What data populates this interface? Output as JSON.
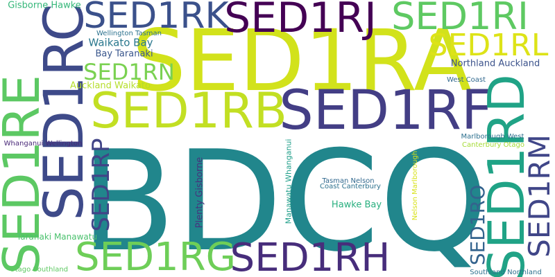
{
  "words": [
    {
      "text": "BDCQ",
      "color": "#21868c"
    },
    {
      "text": "SED1RA",
      "color": "#d2e21b"
    },
    {
      "text": "SED1RB",
      "color": "#c2df23"
    },
    {
      "text": "SED1RF",
      "color": "#433e85"
    },
    {
      "text": "SED1RJ",
      "color": "#440154"
    },
    {
      "text": "SED1RK",
      "color": "#3b518b"
    },
    {
      "text": "SED1RI",
      "color": "#5ec962"
    },
    {
      "text": "SED1RL",
      "color": "#dde318"
    },
    {
      "text": "SED1RC",
      "color": "#3e4a89"
    },
    {
      "text": "SED1RE",
      "color": "#5cc863"
    },
    {
      "text": "SED1RD",
      "color": "#20a386"
    },
    {
      "text": "SED1RG",
      "color": "#6ece58"
    },
    {
      "text": "SED1RH",
      "color": "#472d7b"
    },
    {
      "text": "SED1RN",
      "color": "#7ad151"
    },
    {
      "text": "SED1RP",
      "color": "#414487"
    },
    {
      "text": "SED1RM",
      "color": "#404688"
    },
    {
      "text": "SED1RO",
      "color": "#33638d"
    },
    {
      "text": "Gisborne Hawke",
      "color": "#35b779"
    },
    {
      "text": "Wellington Tasman",
      "color": "#2c728e"
    },
    {
      "text": "Bay Taranaki",
      "color": "#39568c"
    },
    {
      "text": "Waikato Bay",
      "color": "#2a788e"
    },
    {
      "text": "Auckland Waikato",
      "color": "#b5de2b"
    },
    {
      "text": "Northland Auckland",
      "color": "#3b528b"
    },
    {
      "text": "West Coast",
      "color": "#31688e"
    },
    {
      "text": "Whanganui Wellington",
      "color": "#482878"
    },
    {
      "text": "Marlborough West",
      "color": "#2d708e"
    },
    {
      "text": "Canterbury Otago",
      "color": "#a5db36"
    },
    {
      "text": "Plenty Gisborne",
      "color": "#46337e"
    },
    {
      "text": "Manawatu Whanganui",
      "color": "#1f9e89"
    },
    {
      "text": "Nelson Marlborough",
      "color": "#d8e219"
    },
    {
      "text": "Tasman Nelson",
      "color": "#31688e"
    },
    {
      "text": "Coast Canterbury",
      "color": "#2c718e"
    },
    {
      "text": "Hawke Bay",
      "color": "#29af7f"
    },
    {
      "text": "Taranaki Manawatu",
      "color": "#4ac16d"
    },
    {
      "text": "Otago Southland",
      "color": "#5ec962"
    },
    {
      "text": "Southland Northland",
      "color": "#2d708e"
    }
  ]
}
